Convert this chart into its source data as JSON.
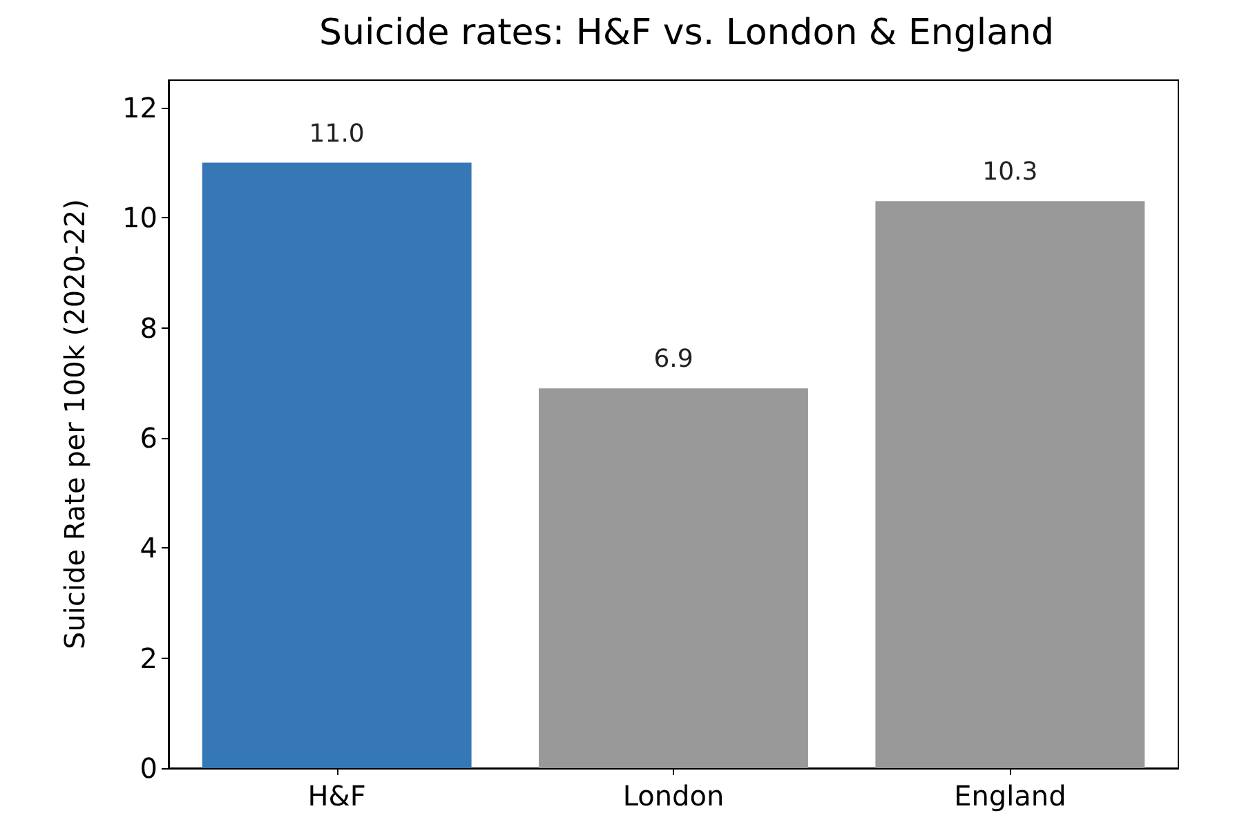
{
  "chart_data": {
    "type": "bar",
    "title": "Suicide rates: H&F vs. London & England",
    "ylabel": "Suicide Rate per 100k (2020-22)",
    "categories": [
      "H&F",
      "London",
      "England"
    ],
    "values": [
      11.0,
      6.9,
      10.3
    ],
    "colors": [
      "#3677b5",
      "#999999",
      "#999999"
    ],
    "value_labels": [
      "11.0",
      "6.9",
      "10.3"
    ],
    "ylim": [
      0,
      12.5
    ],
    "yticks": [
      0,
      2,
      4,
      6,
      8,
      10,
      12
    ],
    "grid": false
  }
}
